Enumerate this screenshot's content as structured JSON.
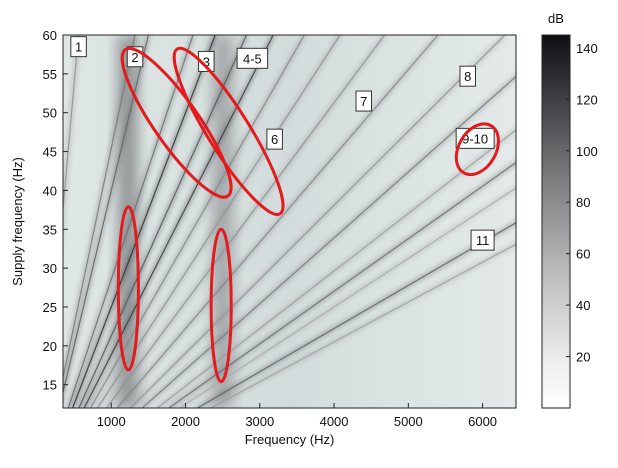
{
  "chart_data": {
    "type": "heatmap",
    "xlabel": "Frequency (Hz)",
    "ylabel": "Supply frequency (Hz)",
    "xlim": [
      350,
      6450
    ],
    "ylim": [
      12,
      60
    ],
    "x_ticks": [
      1000,
      2000,
      3000,
      4000,
      5000,
      6000
    ],
    "x_tick_labels": [
      "1000",
      "2000",
      "3000",
      "4000",
      "5000",
      "6000"
    ],
    "y_ticks": [
      15,
      20,
      25,
      30,
      35,
      40,
      45,
      50,
      55,
      60
    ],
    "y_tick_labels": [
      "15",
      "20",
      "25",
      "30",
      "35",
      "40",
      "45",
      "50",
      "55",
      "60"
    ],
    "colorbar": {
      "label": "dB",
      "range": [
        0,
        145
      ],
      "ticks": [
        20,
        40,
        60,
        80,
        100,
        120,
        140
      ],
      "tick_labels": [
        "20",
        "40",
        "60",
        "80",
        "100",
        "120",
        "140"
      ],
      "colormap": [
        "#ffffff",
        "#0d0d12"
      ]
    },
    "grid": false,
    "line_labels": [
      {
        "text": "1",
        "x": 560,
        "y": 58.5
      },
      {
        "text": "2",
        "x": 1320,
        "y": 57.2
      },
      {
        "text": "3",
        "x": 2280,
        "y": 56.6
      },
      {
        "text": "4-5",
        "x": 2900,
        "y": 57.0
      },
      {
        "text": "6",
        "x": 3200,
        "y": 46.6
      },
      {
        "text": "7",
        "x": 4400,
        "y": 51.5
      },
      {
        "text": "8",
        "x": 5800,
        "y": 54.7
      },
      {
        "text": "9-10",
        "x": 5900,
        "y": 46.7
      },
      {
        "text": "11",
        "x": 6000,
        "y": 33.6
      }
    ],
    "highlight_ellipses": [
      {
        "cx": 1880,
        "cy": 48.7,
        "rx": 600,
        "ry": 11.5,
        "angle_deg": 27
      },
      {
        "cx": 2580,
        "cy": 47.6,
        "rx": 560,
        "ry": 12.5,
        "angle_deg": 24
      },
      {
        "cx": 1230,
        "cy": 27.4,
        "rx": 270,
        "ry": 10.5,
        "angle_deg": 0
      },
      {
        "cx": 2480,
        "cy": 25.2,
        "rx": 270,
        "ry": 9.8,
        "angle_deg": 0
      },
      {
        "cx": 5930,
        "cy": 45.3,
        "rx": 500,
        "ry": 3.5,
        "angle_deg": -30
      }
    ],
    "highlight_color": "#e41a1c",
    "harmonic_lines": [
      {
        "slope": 9.3,
        "intercept": 0,
        "intensity": 0.45
      },
      {
        "slope": 22,
        "intercept": 0,
        "intensity": 0.55
      },
      {
        "slope": 25,
        "intercept": 0,
        "intensity": 0.65
      },
      {
        "slope": 35,
        "intercept": 0,
        "intensity": 0.6
      },
      {
        "slope": 40,
        "intercept": 0,
        "intensity": 0.85
      },
      {
        "slope": 47,
        "intercept": 0,
        "intensity": 0.7
      },
      {
        "slope": 53,
        "intercept": 0,
        "intensity": 0.8
      },
      {
        "slope": 60,
        "intercept": 0,
        "intensity": 0.5
      },
      {
        "slope": 68,
        "intercept": 0,
        "intensity": 0.45
      },
      {
        "slope": 78,
        "intercept": 0,
        "intensity": 0.45
      },
      {
        "slope": 90,
        "intercept": 0,
        "intensity": 0.5
      },
      {
        "slope": 105,
        "intercept": 0,
        "intensity": 0.45
      },
      {
        "slope": 118,
        "intercept": 0,
        "intensity": 0.55
      },
      {
        "slope": 135,
        "intercept": 0,
        "intensity": 0.4
      },
      {
        "slope": 148,
        "intercept": 0,
        "intensity": 0.6
      },
      {
        "slope": 160,
        "intercept": 0,
        "intensity": 0.35
      },
      {
        "slope": 180,
        "intercept": 0,
        "intensity": 0.65
      },
      {
        "slope": 195,
        "intercept": 0,
        "intensity": 0.4
      }
    ],
    "resonance_bands": [
      {
        "x": 1220,
        "intensity": 0.7
      },
      {
        "x": 2500,
        "intensity": 0.55
      }
    ]
  }
}
